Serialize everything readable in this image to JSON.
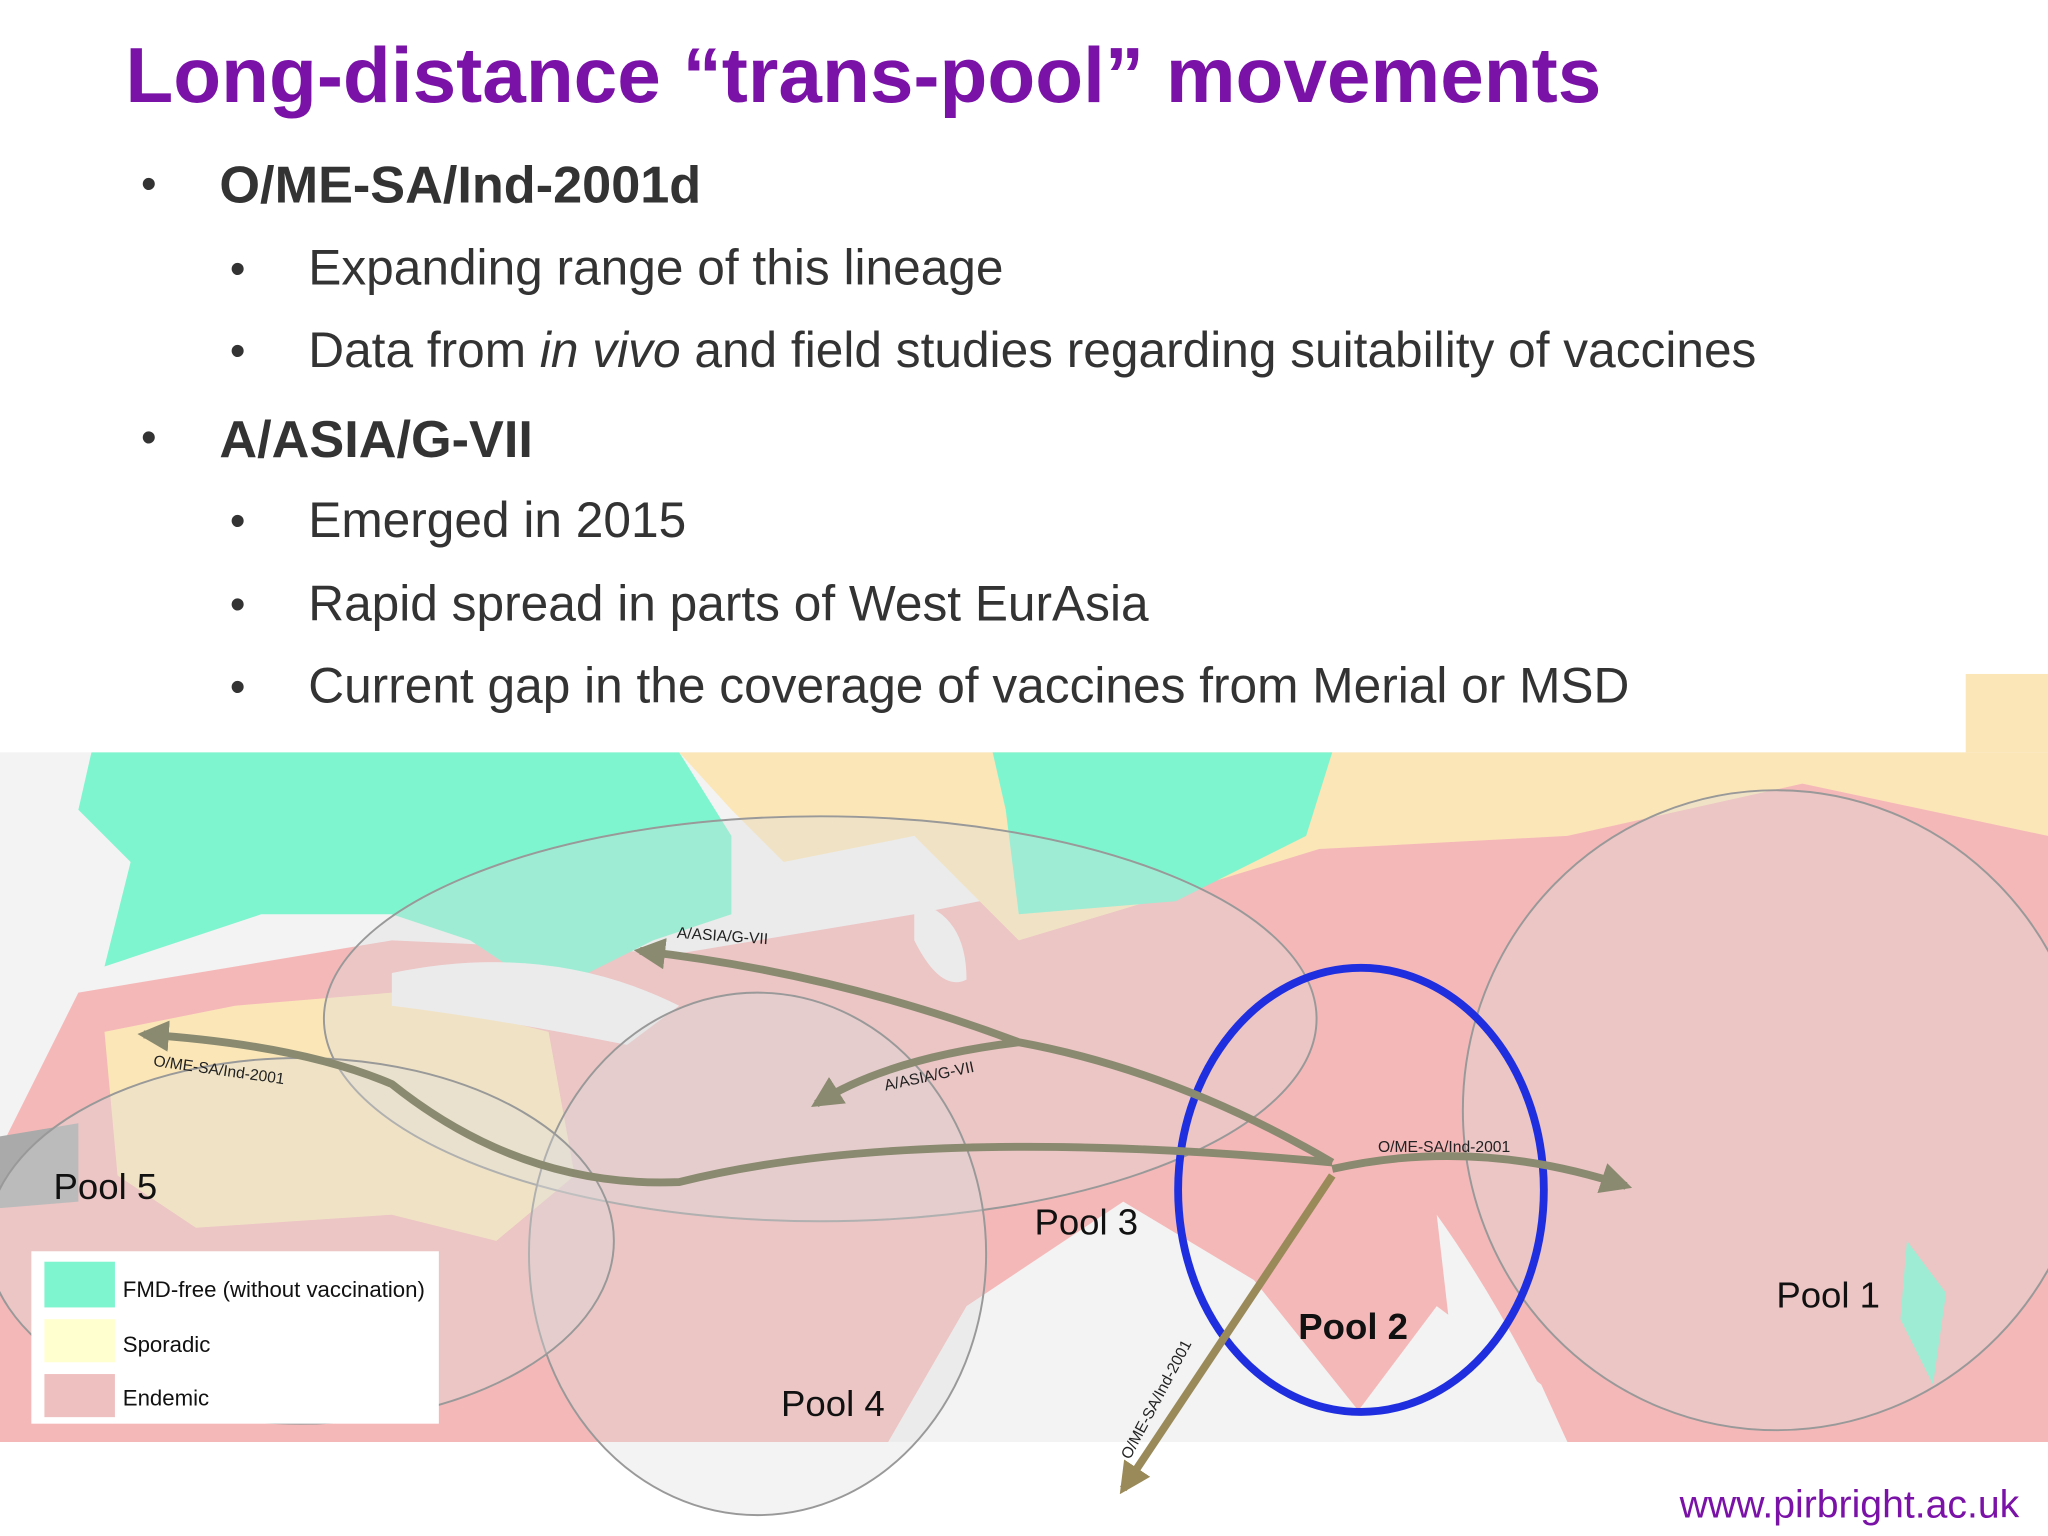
{
  "title": "Long-distance “trans-pool” movements",
  "bullets": [
    {
      "text": "O/ME-SA/Ind-2001d",
      "subbullets": [
        [
          "Expanding range of this lineage"
        ],
        [
          "Data from ",
          "in vivo",
          " and field studies regarding suitability of vaccines"
        ]
      ]
    },
    {
      "text": "A/ASIA/G-VII",
      "subbullets": [
        [
          "Emerged in 2015"
        ],
        [
          "Rapid spread in parts of West EurAsia"
        ],
        [
          "Current gap in the coverage of vaccines from Merial or MSD"
        ]
      ]
    }
  ],
  "map": {
    "pools": [
      "Pool 5",
      "Pool 3",
      "Pool 4",
      "Pool 2",
      "Pool 1"
    ],
    "arrows": [
      "A/ASIA/G-VII",
      "A/ASIA/G-VII",
      "O/ME-SA/Ind-2001",
      "O/ME-SA/Ind-2001",
      "O/ME-SA/Ind-2001"
    ],
    "legend": [
      "FMD-free (without vaccination)",
      "Sporadic",
      "Endemic"
    ]
  },
  "footer": "www.pirbright.ac.uk"
}
